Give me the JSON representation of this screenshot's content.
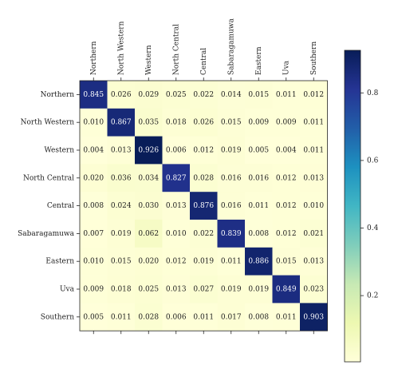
{
  "chart_data": {
    "type": "heatmap",
    "categories": [
      "Northern",
      "North Western",
      "Western",
      "North Central",
      "Central",
      "Sabaragamuwa",
      "Eastern",
      "Uva",
      "Southern"
    ],
    "values": [
      [
        0.845,
        0.026,
        0.029,
        0.025,
        0.022,
        0.014,
        0.015,
        0.011,
        0.012
      ],
      [
        0.01,
        0.867,
        0.035,
        0.018,
        0.026,
        0.015,
        0.009,
        0.009,
        0.011
      ],
      [
        0.004,
        0.013,
        0.926,
        0.006,
        0.012,
        0.019,
        0.005,
        0.004,
        0.011
      ],
      [
        0.02,
        0.036,
        0.034,
        0.827,
        0.028,
        0.016,
        0.016,
        0.012,
        0.013
      ],
      [
        0.008,
        0.024,
        0.03,
        0.013,
        0.876,
        0.016,
        0.011,
        0.012,
        0.01
      ],
      [
        0.007,
        0.019,
        0.062,
        0.01,
        0.022,
        0.839,
        0.008,
        0.012,
        0.021
      ],
      [
        0.01,
        0.015,
        0.02,
        0.012,
        0.019,
        0.011,
        0.886,
        0.015,
        0.013
      ],
      [
        0.009,
        0.018,
        0.025,
        0.013,
        0.027,
        0.019,
        0.019,
        0.849,
        0.023
      ],
      [
        0.005,
        0.011,
        0.028,
        0.006,
        0.011,
        0.017,
        0.008,
        0.011,
        0.903
      ]
    ],
    "value_labels": [
      [
        "0.845",
        "0.026",
        "0.029",
        "0.025",
        "0.022",
        "0.014",
        "0.015",
        "0.011",
        "0.012"
      ],
      [
        "0.010",
        "0.867",
        "0.035",
        "0.018",
        "0.026",
        "0.015",
        "0.009",
        "0.009",
        "0.011"
      ],
      [
        "0.004",
        "0.013",
        "0.926",
        "0.006",
        "0.012",
        "0.019",
        "0.005",
        "0.004",
        "0.011"
      ],
      [
        "0.020",
        "0.036",
        "0.034",
        "0.827",
        "0.028",
        "0.016",
        "0.016",
        "0.012",
        "0.013"
      ],
      [
        "0.008",
        "0.024",
        "0.030",
        "0.013",
        "0.876",
        "0.016",
        "0.011",
        "0.012",
        "0.010"
      ],
      [
        "0.007",
        "0.019",
        "0.062",
        "0.010",
        "0.022",
        "0.839",
        "0.008",
        "0.012",
        "0.021"
      ],
      [
        "0.010",
        "0.015",
        "0.020",
        "0.012",
        "0.019",
        "0.011",
        "0.886",
        "0.015",
        "0.013"
      ],
      [
        "0.009",
        "0.018",
        "0.025",
        "0.013",
        "0.027",
        "0.019",
        "0.019",
        "0.849",
        "0.023"
      ],
      [
        "0.005",
        "0.011",
        "0.028",
        "0.006",
        "0.011",
        "0.017",
        "0.008",
        "0.011",
        "0.903"
      ]
    ],
    "colormap": [
      "#ffffd9",
      "#edf8b1",
      "#c7e9b4",
      "#7fcdbb",
      "#41b6c4",
      "#1d91c0",
      "#225ea8",
      "#253494",
      "#081d58"
    ],
    "clim": [
      0.004,
      0.926
    ],
    "cticks": [
      0.2,
      0.4,
      0.6,
      0.8
    ]
  }
}
